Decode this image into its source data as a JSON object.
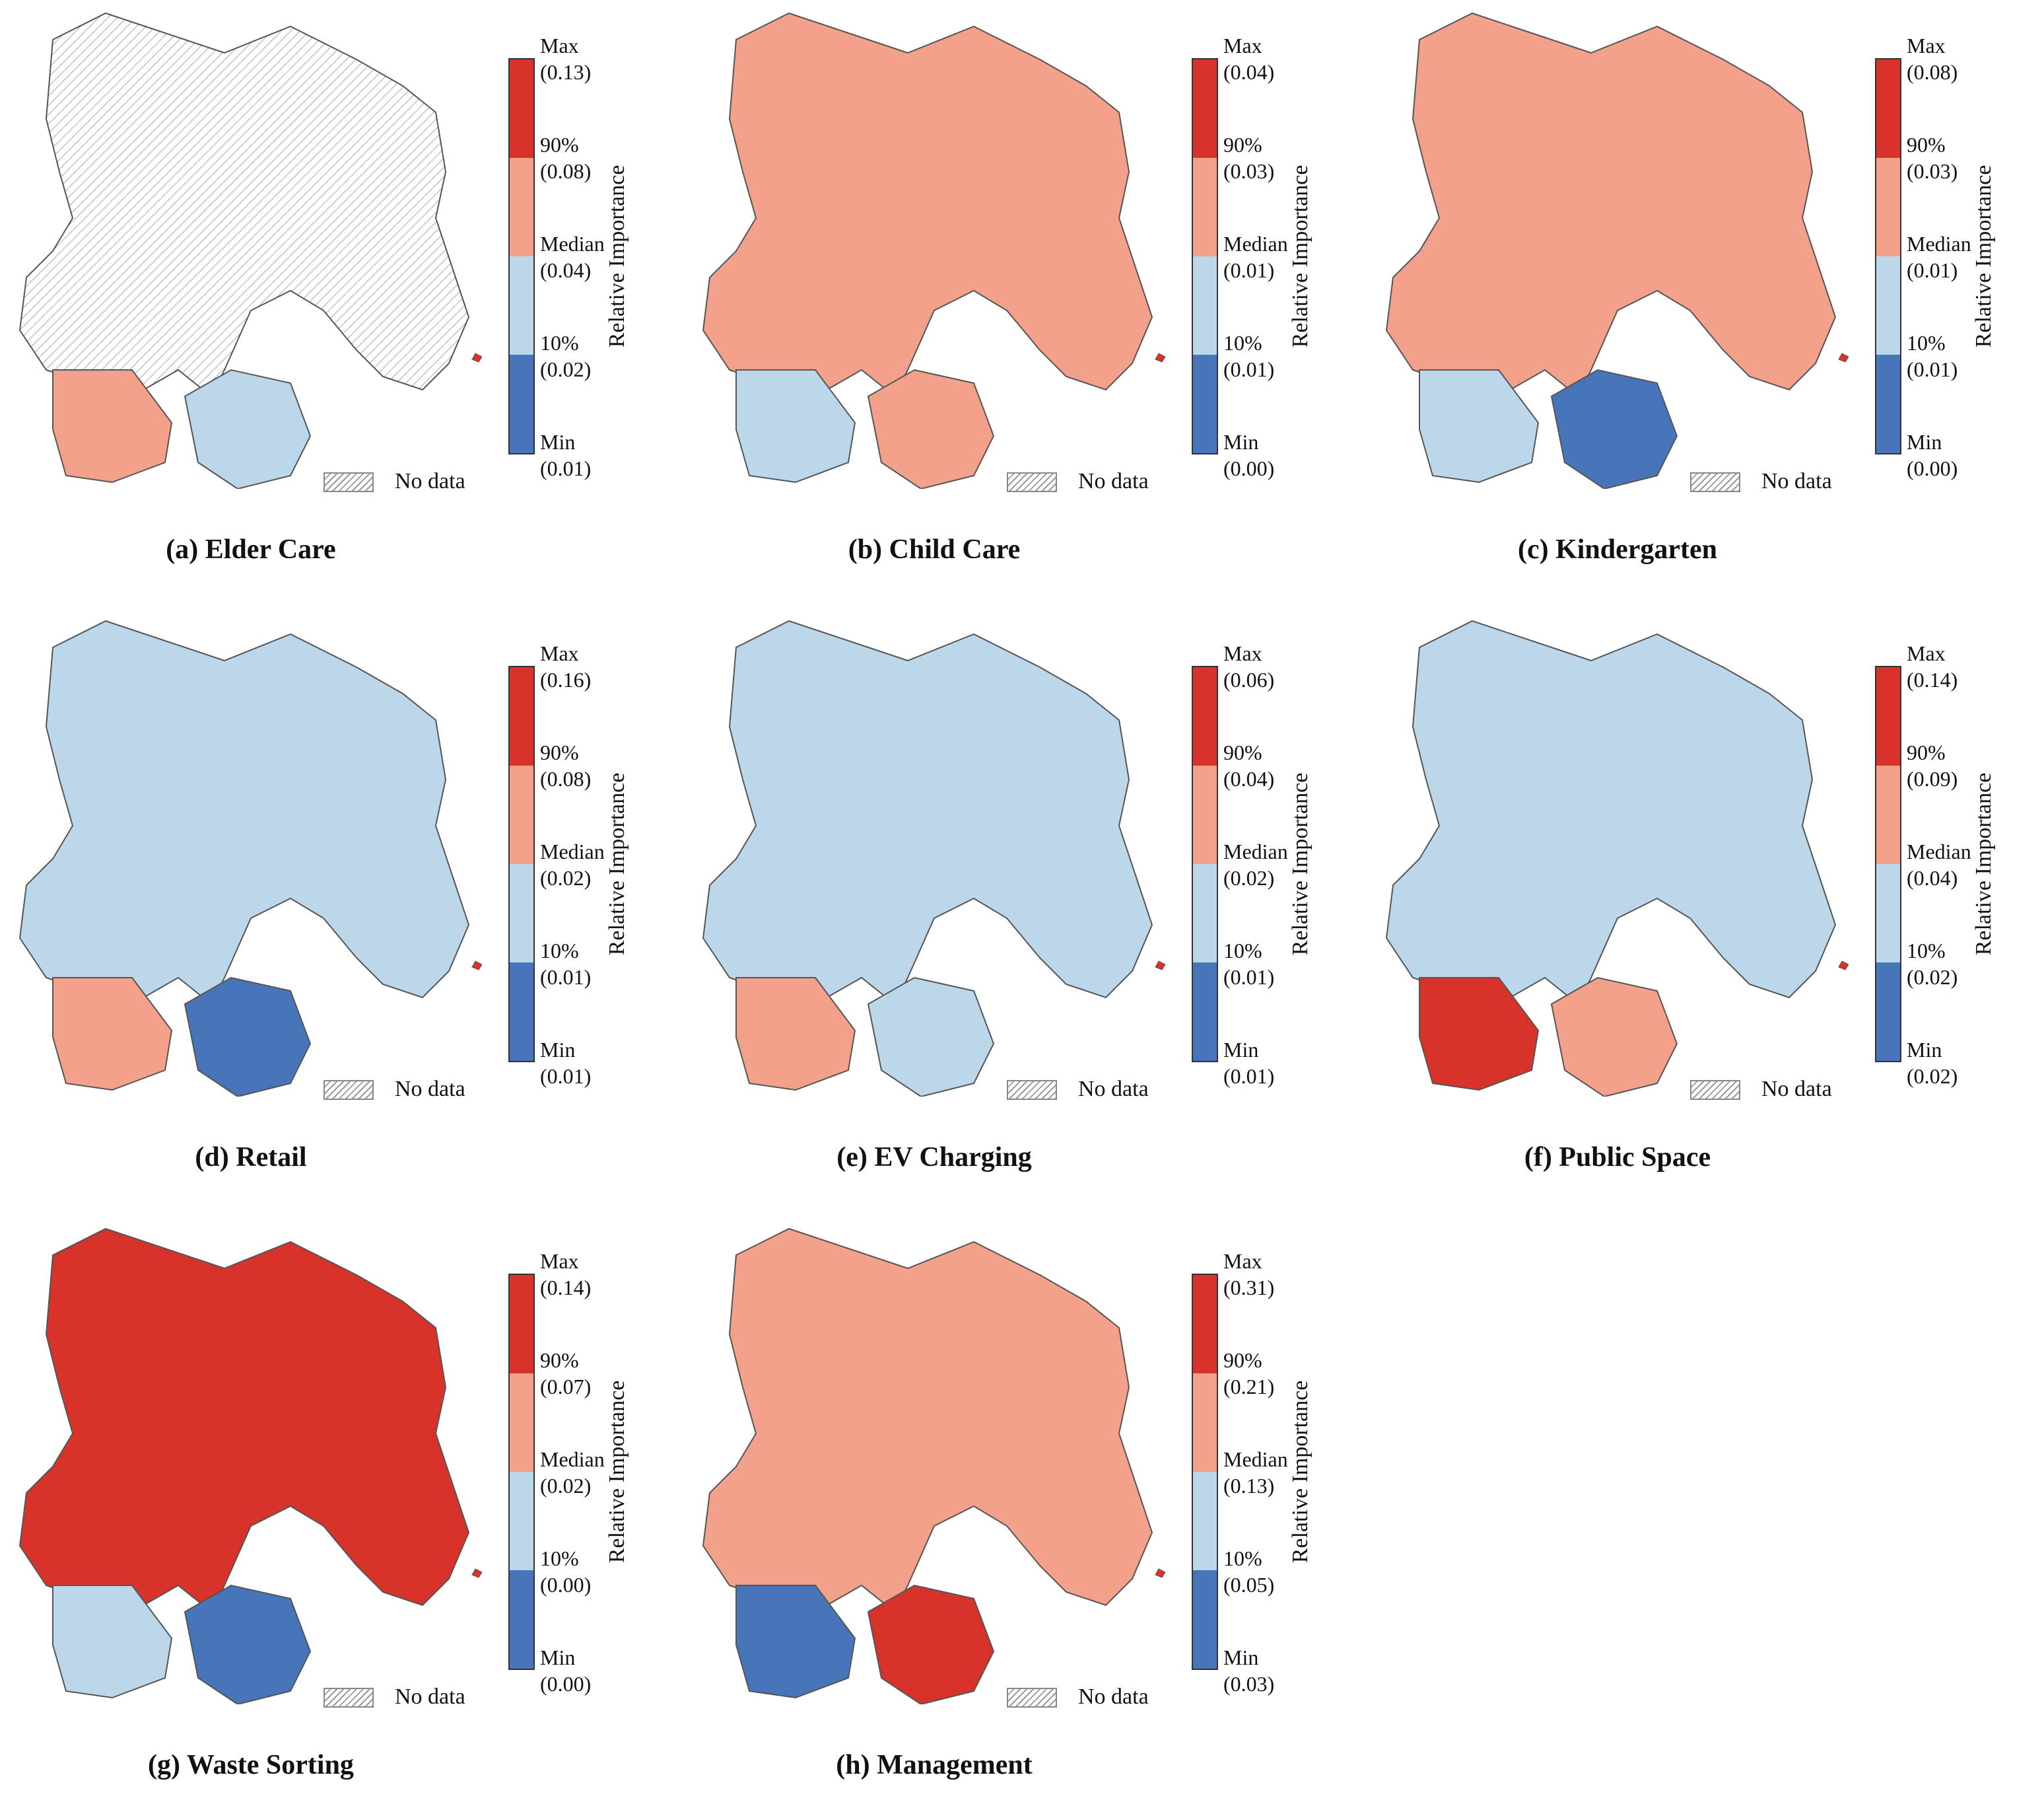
{
  "legend": {
    "title": "Relative Importance",
    "no_data": "No data",
    "class_colors": [
      "#d7332b",
      "#f3a18a",
      "#bcd7ea",
      "#4875b9"
    ],
    "no_data_color": "#ffffff"
  },
  "panels": [
    {
      "caption": "(a) Elder Care",
      "max_label": "Max",
      "max_value": "(0.13)",
      "p90_label": "90%",
      "p90_value": "(0.08)",
      "median_label": "Median",
      "median_value": "(0.04)",
      "p10_label": "10%",
      "p10_value": "(0.02)",
      "min_label": "Min",
      "min_value": "(0.01)"
    },
    {
      "caption": "(b) Child Care",
      "max_label": "Max",
      "max_value": "(0.04)",
      "p90_label": "90%",
      "p90_value": "(0.03)",
      "median_label": "Median",
      "median_value": "(0.01)",
      "p10_label": "10%",
      "p10_value": "(0.01)",
      "min_label": "Min",
      "min_value": "(0.00)"
    },
    {
      "caption": "(c) Kindergarten",
      "max_label": "Max",
      "max_value": "(0.08)",
      "p90_label": "90%",
      "p90_value": "(0.03)",
      "median_label": "Median",
      "median_value": "(0.01)",
      "p10_label": "10%",
      "p10_value": "(0.01)",
      "min_label": "Min",
      "min_value": "(0.00)"
    },
    {
      "caption": "(d) Retail",
      "max_label": "Max",
      "max_value": "(0.16)",
      "p90_label": "90%",
      "p90_value": "(0.08)",
      "median_label": "Median",
      "median_value": "(0.02)",
      "p10_label": "10%",
      "p10_value": "(0.01)",
      "min_label": "Min",
      "min_value": "(0.01)"
    },
    {
      "caption": "(e) EV Charging",
      "max_label": "Max",
      "max_value": "(0.06)",
      "p90_label": "90%",
      "p90_value": "(0.04)",
      "median_label": "Median",
      "median_value": "(0.02)",
      "p10_label": "10%",
      "p10_value": "(0.01)",
      "min_label": "Min",
      "min_value": "(0.01)"
    },
    {
      "caption": "(f) Public Space",
      "max_label": "Max",
      "max_value": "(0.14)",
      "p90_label": "90%",
      "p90_value": "(0.09)",
      "median_label": "Median",
      "median_value": "(0.04)",
      "p10_label": "10%",
      "p10_value": "(0.02)",
      "min_label": "Min",
      "min_value": "(0.02)"
    },
    {
      "caption": "(g) Waste Sorting",
      "max_label": "Max",
      "max_value": "(0.14)",
      "p90_label": "90%",
      "p90_value": "(0.07)",
      "median_label": "Median",
      "median_value": "(0.02)",
      "p10_label": "10%",
      "p10_value": "(0.00)",
      "min_label": "Min",
      "min_value": "(0.00)"
    },
    {
      "caption": "(h) Management",
      "max_label": "Max",
      "max_value": "(0.31)",
      "p90_label": "90%",
      "p90_value": "(0.21)",
      "median_label": "Median",
      "median_value": "(0.13)",
      "p10_label": "10%",
      "p10_value": "(0.05)",
      "min_label": "Min",
      "min_value": "(0.03)"
    }
  ]
}
